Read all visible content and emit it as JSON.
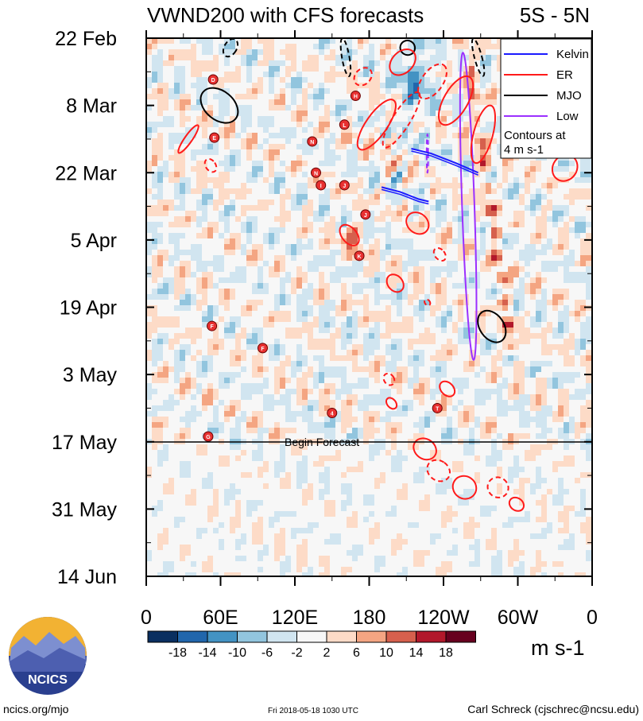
{
  "chart_data": {
    "type": "heatmap",
    "title": "VWND200 with CFS forecasts",
    "region": "5S - 5N",
    "x_ticks": [
      "0",
      "60E",
      "120E",
      "180",
      "120W",
      "60W",
      "0"
    ],
    "x_tick_values": [
      0,
      60,
      120,
      180,
      240,
      300,
      360
    ],
    "xlim": [
      0,
      360
    ],
    "y_ticks": [
      "22 Feb",
      "8 Mar",
      "22 Mar",
      "5 Apr",
      "19 Apr",
      "3 May",
      "17 May",
      "31 May",
      "14 Jun"
    ],
    "y_tick_days": [
      0,
      14,
      28,
      42,
      56,
      70,
      84,
      98,
      112
    ],
    "colorbar": {
      "levels": [
        "-18",
        "-14",
        "-10",
        "-6",
        "-2",
        "2",
        "6",
        "10",
        "14",
        "18"
      ],
      "colors": [
        "#0a2f60",
        "#2166ac",
        "#4393c3",
        "#92c5de",
        "#d1e5f0",
        "#f7f7f7",
        "#fddbc7",
        "#f4a582",
        "#d6604d",
        "#b2182b",
        "#67001f"
      ],
      "units": "m s-1"
    },
    "forecast_line": {
      "day": 84,
      "label": "Begin Forecast"
    },
    "legend": {
      "items": [
        {
          "name": "Kelvin",
          "color": "#1a1aff"
        },
        {
          "name": "ER",
          "color": "#ff1a1a"
        },
        {
          "name": "MJO",
          "color": "#000000"
        },
        {
          "name": "Low",
          "color": "#9b30ff"
        }
      ],
      "note1": "Contours at",
      "note2": "4 m s-1"
    },
    "contours": [
      {
        "type": "Low",
        "lon": 260,
        "day": 35,
        "rlon": 5,
        "rday": 32,
        "angle": -2,
        "dashed": false
      },
      {
        "type": "Low",
        "lon": 227,
        "day": 24,
        "rlon": 0.6,
        "rday": 4,
        "angle": 0,
        "dashed": true
      },
      {
        "type": "MJO",
        "lon": 59,
        "day": 14,
        "rlon": 17,
        "rday": 3,
        "angle": 40,
        "dashed": false
      },
      {
        "type": "MJO",
        "lon": 279,
        "day": 60,
        "rlon": 14,
        "rday": 2.5,
        "angle": 55,
        "dashed": false
      },
      {
        "type": "MJO",
        "lon": 68,
        "day": 2,
        "rlon": 5,
        "rday": 2,
        "angle": 30,
        "dashed": true
      },
      {
        "type": "MJO",
        "lon": 161,
        "day": 4,
        "rlon": 3,
        "rday": 4,
        "angle": -10,
        "dashed": true
      },
      {
        "type": "MJO",
        "lon": 268,
        "day": 4,
        "rlon": 3,
        "rday": 4,
        "angle": -15,
        "dashed": true
      },
      {
        "type": "MJO",
        "lon": 211,
        "day": 2,
        "rlon": 6,
        "rday": 1.5,
        "angle": 30,
        "dashed": false
      },
      {
        "type": "ER",
        "lon": 34,
        "day": 21,
        "rlon": 3,
        "rday": 3.5,
        "angle": 35,
        "dashed": false
      },
      {
        "type": "ER",
        "lon": 52,
        "day": 26.5,
        "rlon": 4,
        "rday": 1.5,
        "angle": -35,
        "dashed": true
      },
      {
        "type": "ER",
        "lon": 164,
        "day": 41,
        "rlon": 6,
        "rday": 2.5,
        "angle": -40,
        "dashed": false
      },
      {
        "type": "ER",
        "lon": 201,
        "day": 51,
        "rlon": 6,
        "rday": 2,
        "angle": -40,
        "dashed": false
      },
      {
        "type": "ER",
        "lon": 219,
        "day": 38.5,
        "rlon": 8,
        "rday": 2.5,
        "angle": -50,
        "dashed": false
      },
      {
        "type": "ER",
        "lon": 237,
        "day": 45,
        "rlon": 4,
        "rday": 1.5,
        "angle": -40,
        "dashed": true
      },
      {
        "type": "ER",
        "lon": 227,
        "day": 55,
        "rlon": 2,
        "rday": 0.7,
        "angle": -40,
        "dashed": true
      },
      {
        "type": "ER",
        "lon": 196,
        "day": 71,
        "rlon": 4,
        "rday": 1.3,
        "angle": -35,
        "dashed": true
      },
      {
        "type": "ER",
        "lon": 198,
        "day": 76,
        "rlon": 3.5,
        "rday": 1.3,
        "angle": -40,
        "dashed": false
      },
      {
        "type": "ER",
        "lon": 243,
        "day": 73,
        "rlon": 5,
        "rday": 1.8,
        "angle": -45,
        "dashed": false
      },
      {
        "type": "ER",
        "lon": 225,
        "day": 85.5,
        "rlon": 8,
        "rday": 2.5,
        "angle": -55,
        "dashed": false
      },
      {
        "type": "ER",
        "lon": 236,
        "day": 90,
        "rlon": 8,
        "rday": 2.5,
        "angle": -55,
        "dashed": true
      },
      {
        "type": "ER",
        "lon": 257,
        "day": 93.5,
        "rlon": 9,
        "rday": 2.5,
        "angle": -55,
        "dashed": false
      },
      {
        "type": "ER",
        "lon": 284,
        "day": 93.5,
        "rlon": 8,
        "rday": 2.2,
        "angle": -55,
        "dashed": true
      },
      {
        "type": "ER",
        "lon": 299,
        "day": 97,
        "rlon": 5,
        "rday": 1.6,
        "angle": -55,
        "dashed": false
      },
      {
        "type": "ER",
        "lon": 338,
        "day": 27,
        "rlon": 11,
        "rday": 2.5,
        "angle": -55,
        "dashed": false
      },
      {
        "type": "ER",
        "lon": 345,
        "day": 11,
        "rlon": 9,
        "rday": 2,
        "angle": -55,
        "dashed": false
      },
      {
        "type": "ER",
        "lon": 186,
        "day": 18,
        "rlon": 24,
        "rday": 2.2,
        "angle": -55,
        "dashed": false
      },
      {
        "type": "ER",
        "lon": 206,
        "day": 17,
        "rlon": 26,
        "rday": 1.8,
        "angle": -58,
        "dashed": true
      },
      {
        "type": "ER",
        "lon": 207,
        "day": 5,
        "rlon": 12,
        "rday": 2.2,
        "angle": -45,
        "dashed": false
      },
      {
        "type": "ER",
        "lon": 231,
        "day": 9,
        "rlon": 16,
        "rday": 2.2,
        "angle": -55,
        "dashed": true
      },
      {
        "type": "ER",
        "lon": 250,
        "day": 13,
        "rlon": 22,
        "rday": 2.5,
        "angle": -60,
        "dashed": false
      },
      {
        "type": "ER",
        "lon": 272,
        "day": 20,
        "rlon": 24,
        "rday": 2,
        "angle": -75,
        "dashed": false
      },
      {
        "type": "ER",
        "lon": 175,
        "day": 8,
        "rlon": 8,
        "rday": 1.6,
        "angle": -45,
        "dashed": true
      }
    ],
    "kelvin": [
      {
        "points": [
          [
            214,
            23
          ],
          [
            230,
            24
          ],
          [
            250,
            26
          ],
          [
            268,
            28
          ]
        ]
      },
      {
        "points": [
          [
            190,
            31
          ],
          [
            205,
            32
          ],
          [
            220,
            33.5
          ],
          [
            228,
            34
          ]
        ]
      }
    ],
    "storms": [
      {
        "label": "D",
        "lon": 54,
        "day": 8.6
      },
      {
        "label": "E",
        "lon": 55,
        "day": 20.7
      },
      {
        "label": "F",
        "lon": 53,
        "day": 59.9
      },
      {
        "label": "F",
        "lon": 94,
        "day": 64.5
      },
      {
        "label": "G",
        "lon": 50,
        "day": 82.9
      },
      {
        "label": "H",
        "lon": 169,
        "day": 12
      },
      {
        "label": "L",
        "lon": 160,
        "day": 18
      },
      {
        "label": "N",
        "lon": 134,
        "day": 21.5
      },
      {
        "label": "N",
        "lon": 137,
        "day": 28
      },
      {
        "label": "I",
        "lon": 141,
        "day": 30.6
      },
      {
        "label": "J",
        "lon": 160,
        "day": 30.6
      },
      {
        "label": "J",
        "lon": 177,
        "day": 36.7
      },
      {
        "label": "K",
        "lon": 172,
        "day": 45.3
      },
      {
        "label": "4",
        "lon": 150,
        "day": 78
      },
      {
        "label": "T",
        "lon": 235,
        "day": 77
      }
    ]
  },
  "footer": {
    "left": "ncics.org/mjo",
    "center": "Fri 2018-05-18 1030 UTC",
    "right": "Carl Schreck (cjschrec@ncsu.edu)"
  },
  "logo": {
    "text": "NCICS"
  }
}
